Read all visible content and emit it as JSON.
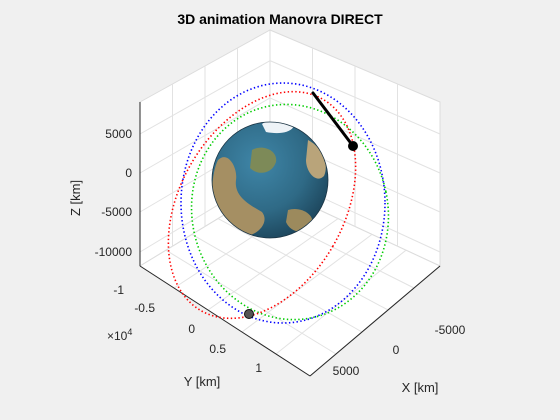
{
  "chart_data": {
    "type": "scatter",
    "title": "3D animation Manovra DIRECT",
    "xlabel": "X [km]",
    "ylabel": "Y [km]",
    "zlabel": "Z [km]",
    "x_ticks": [
      "-5000",
      "0",
      "5000"
    ],
    "y_ticks": [
      "-1",
      "-0.5",
      "0",
      "0.5",
      "1"
    ],
    "y_exponent": "×10",
    "y_exponent_power": "4",
    "z_ticks": [
      "5000",
      "0",
      "-5000",
      "-10000"
    ],
    "grid": true,
    "series": [
      {
        "color": "#0000ff",
        "style": "dotted"
      },
      {
        "color": "#00cc00",
        "style": "dotted"
      },
      {
        "color": "#ff0000",
        "style": "dotted"
      }
    ],
    "markers": [
      {
        "color": "#000000"
      },
      {
        "color": "#555555"
      }
    ]
  },
  "colors": {
    "background": "#f0f0f0",
    "axes_background": "#ffffff",
    "grid": "#dcdcdc",
    "earth_ocean": "#2f6a86",
    "earth_land": "#b9a47a",
    "earth_ice": "#eef3f7"
  },
  "icons": {
    "earth": "earth-globe-icon",
    "spacecraft": "spacecraft-marker-icon"
  }
}
